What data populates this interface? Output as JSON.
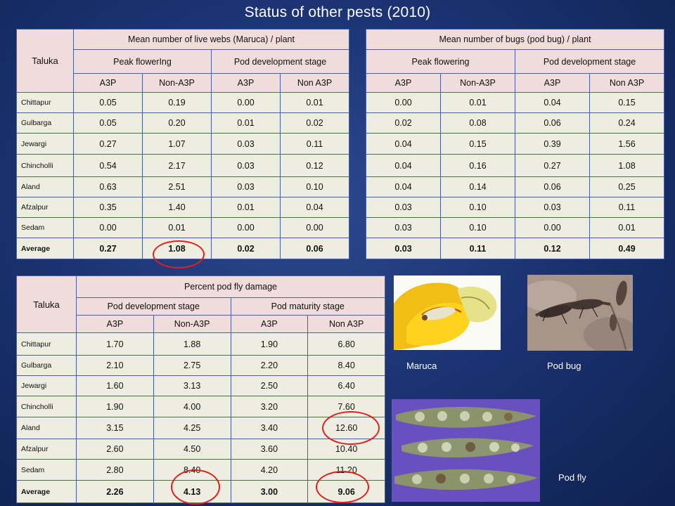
{
  "title": "Status of other pests (2010)",
  "webs": {
    "taluka_label": "Taluka",
    "heading": "Mean number of live webs  (Maruca) / plant",
    "stage1": "Peak flowerIng",
    "stage2": "Pod development stage",
    "cols": [
      "A3P",
      "Non-A3P",
      "A3P",
      "Non A3P"
    ],
    "rows": [
      {
        "name": "Chittapur",
        "v": [
          "0.05",
          "0.19",
          "0.00",
          "0.01"
        ]
      },
      {
        "name": "Gulbarga",
        "v": [
          "0.05",
          "0.20",
          "0.01",
          "0.02"
        ]
      },
      {
        "name": "Jewargi",
        "v": [
          "0.27",
          "1.07",
          "0.03",
          "0.11"
        ]
      },
      {
        "name": "Chincholli",
        "v": [
          "0.54",
          "2.17",
          "0.03",
          "0.12"
        ]
      },
      {
        "name": "Aland",
        "v": [
          "0.63",
          "2.51",
          "0.03",
          "0.10"
        ]
      },
      {
        "name": "Afzalpur",
        "v": [
          "0.35",
          "1.40",
          "0.01",
          "0.04"
        ]
      },
      {
        "name": "Sedam",
        "v": [
          "0.00",
          "0.01",
          "0.00",
          "0.00"
        ]
      },
      {
        "name": "Average",
        "v": [
          "0.27",
          "1.08",
          "0.02",
          "0.06"
        ]
      }
    ]
  },
  "bugs": {
    "heading": "Mean number of bugs (pod bug) / plant",
    "stage1": "Peak flowering",
    "stage2": "Pod development stage",
    "cols": [
      "A3P",
      "Non-A3P",
      "A3P",
      "Non A3P"
    ],
    "rows": [
      [
        "0.00",
        "0.01",
        "0.04",
        "0.15"
      ],
      [
        "0.02",
        "0.08",
        "0.06",
        "0.24"
      ],
      [
        "0.04",
        "0.15",
        "0.39",
        "1.56"
      ],
      [
        "0.04",
        "0.16",
        "0.27",
        "1.08"
      ],
      [
        "0.04",
        "0.14",
        "0.06",
        "0.25"
      ],
      [
        "0.03",
        "0.10",
        "0.03",
        "0.11"
      ],
      [
        "0.03",
        "0.10",
        "0.00",
        "0.01"
      ],
      [
        "0.03",
        "0.11",
        "0.12",
        "0.49"
      ]
    ]
  },
  "podfly": {
    "taluka_label": "Taluka",
    "heading": "Percent pod fly damage",
    "stage1": "Pod development stage",
    "stage2": "Pod maturity stage",
    "cols": [
      "A3P",
      "Non-A3P",
      "A3P",
      "Non A3P"
    ],
    "rows": [
      {
        "name": "Chittapur",
        "v": [
          "1.70",
          "1.88",
          "1.90",
          "6.80"
        ]
      },
      {
        "name": "Gulbarga",
        "v": [
          "2.10",
          "2.75",
          "2.20",
          "8.40"
        ]
      },
      {
        "name": "Jewargi",
        "v": [
          "1.60",
          "3.13",
          "2.50",
          "6.40"
        ]
      },
      {
        "name": "Chincholli",
        "v": [
          "1.90",
          "4.00",
          "3.20",
          "7.60"
        ]
      },
      {
        "name": "Aland",
        "v": [
          "3.15",
          "4.25",
          "3.40",
          "12.60"
        ]
      },
      {
        "name": "Afzalpur",
        "v": [
          "2.60",
          "4.50",
          "3.60",
          "10.40"
        ]
      },
      {
        "name": "Sedam",
        "v": [
          "2.80",
          "8.40",
          "4.20",
          "11.20"
        ]
      },
      {
        "name": "Average",
        "v": [
          "2.26",
          "4.13",
          "3.00",
          "9.06"
        ]
      }
    ]
  },
  "captions": {
    "maruca": "Maruca",
    "pod_bug": "Pod bug",
    "pod_fly": "Pod fly"
  },
  "colors": {
    "header_fill": "#f1dcdc",
    "cell_fill": "#eeeee0",
    "highlight": "#e02020"
  }
}
